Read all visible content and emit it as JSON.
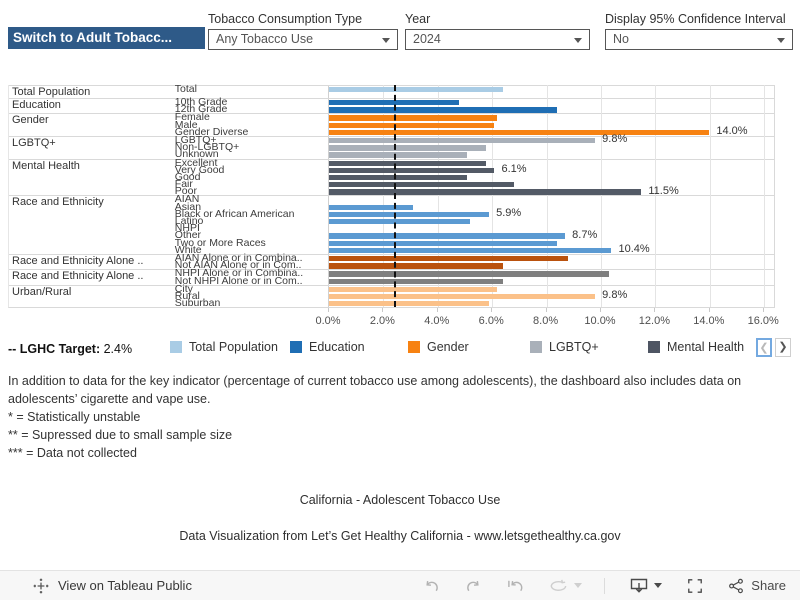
{
  "header": {
    "switch_button": "Switch to Adult Tobacc...",
    "filters": [
      {
        "label": "Tobacco Consumption Type",
        "value": "Any Tobacco Use"
      },
      {
        "label": "Year",
        "value": "2024"
      },
      {
        "label": "Display 95% Confidence Interval",
        "value": "No"
      }
    ]
  },
  "chart_data": {
    "type": "bar",
    "orientation": "horizontal",
    "unit": "%",
    "xlim": [
      0,
      16
    ],
    "x_ticks": [
      "0.0%",
      "2.0%",
      "4.0%",
      "6.0%",
      "8.0%",
      "10.0%",
      "12.0%",
      "14.0%",
      "16.0%"
    ],
    "target": {
      "x": 2.4,
      "style": "dashed-black"
    },
    "groups": [
      {
        "name": "Total Population",
        "color": "#a9cce5",
        "rows": [
          {
            "label": "Total",
            "value": 6.4
          }
        ]
      },
      {
        "name": "Education",
        "color": "#1f6eb4",
        "rows": [
          {
            "label": "10th Grade",
            "value": 4.8
          },
          {
            "label": "12th Grade",
            "value": 8.4
          }
        ]
      },
      {
        "name": "Gender",
        "color": "#f78212",
        "rows": [
          {
            "label": "Female",
            "value": 6.2
          },
          {
            "label": "Male",
            "value": 6.1
          },
          {
            "label": "Gender Diverse",
            "value": 14.0,
            "bar_label": "14.0%"
          }
        ]
      },
      {
        "name": "LGBTQ+",
        "color": "#a9b0b9",
        "rows": [
          {
            "label": "LGBTQ+",
            "value": 9.8,
            "bar_label": "9.8%"
          },
          {
            "label": "Non-LGBTQ+",
            "value": 5.8
          },
          {
            "label": "Unknown",
            "value": 5.1
          }
        ]
      },
      {
        "name": "Mental Health",
        "color": "#535a66",
        "rows": [
          {
            "label": "Excellent",
            "value": 5.8
          },
          {
            "label": "Very Good",
            "value": 6.1,
            "bar_label": "6.1%"
          },
          {
            "label": "Good",
            "value": 5.1
          },
          {
            "label": "Fair",
            "value": 6.8
          },
          {
            "label": "Poor",
            "value": 11.5,
            "bar_label": "11.5%"
          }
        ]
      },
      {
        "name": "Race and Ethnicity",
        "color": "#5b9ad2",
        "rows": [
          {
            "label": "AIAN",
            "value": null
          },
          {
            "label": "Asian",
            "value": 3.1
          },
          {
            "label": "Black or African American",
            "value": 5.9,
            "bar_label": "5.9%"
          },
          {
            "label": "Latino",
            "value": 5.2
          },
          {
            "label": "NHPI",
            "value": null
          },
          {
            "label": "Other",
            "value": 8.7,
            "bar_label": "8.7%"
          },
          {
            "label": "Two or More Races",
            "value": 8.4
          },
          {
            "label": "White",
            "value": 10.4,
            "bar_label": "10.4%"
          }
        ]
      },
      {
        "name": "Race and Ethnicity Alone ..",
        "color": "#ba520e",
        "rows": [
          {
            "label": "AIAN Alone or in Combina..",
            "value": 8.8
          },
          {
            "label": "Not AIAN Alone or in Com..",
            "value": 6.4
          }
        ]
      },
      {
        "name": "Race and Ethnicity Alone ..",
        "color": "#7f7f7f",
        "rows": [
          {
            "label": "NHPI Alone or in Combina..",
            "value": 10.3
          },
          {
            "label": "Not NHPI Alone or in Com..",
            "value": 6.4
          }
        ]
      },
      {
        "name": "Urban/Rural",
        "color": "#fbc189",
        "rows": [
          {
            "label": "City",
            "value": 6.2
          },
          {
            "label": "Rural",
            "value": 9.8,
            "bar_label": "9.8%"
          },
          {
            "label": "Suburban",
            "value": 5.9
          }
        ]
      }
    ]
  },
  "legend": {
    "target_label": "-- LGHC Target:",
    "target_value": "2.4%",
    "items": [
      {
        "label": "Total Population",
        "color": "#a9cce5"
      },
      {
        "label": "Education",
        "color": "#1f6eb4"
      },
      {
        "label": "Gender",
        "color": "#f78212"
      },
      {
        "label": "LGBTQ+",
        "color": "#a9b0b9"
      },
      {
        "label": "Mental Health",
        "color": "#4e5563"
      }
    ]
  },
  "notes": {
    "line1": "In addition to data for the key indicator (percentage of current tobacco use among adolescents), the dashboard also includes data on adolescents’ cigarette and vape use.",
    "line2": "* = Statistically unstable",
    "line3": "** = Supressed due to small sample size",
    "line4": "*** = Data not collected"
  },
  "captions": {
    "title": "California - Adolescent Tobacco Use",
    "attribution": "Data Visualization from Let’s Get Healthy California - www.letsgethealthy.ca.gov"
  },
  "toolbar": {
    "view_label": "View on Tableau Public",
    "share_label": "Share"
  }
}
